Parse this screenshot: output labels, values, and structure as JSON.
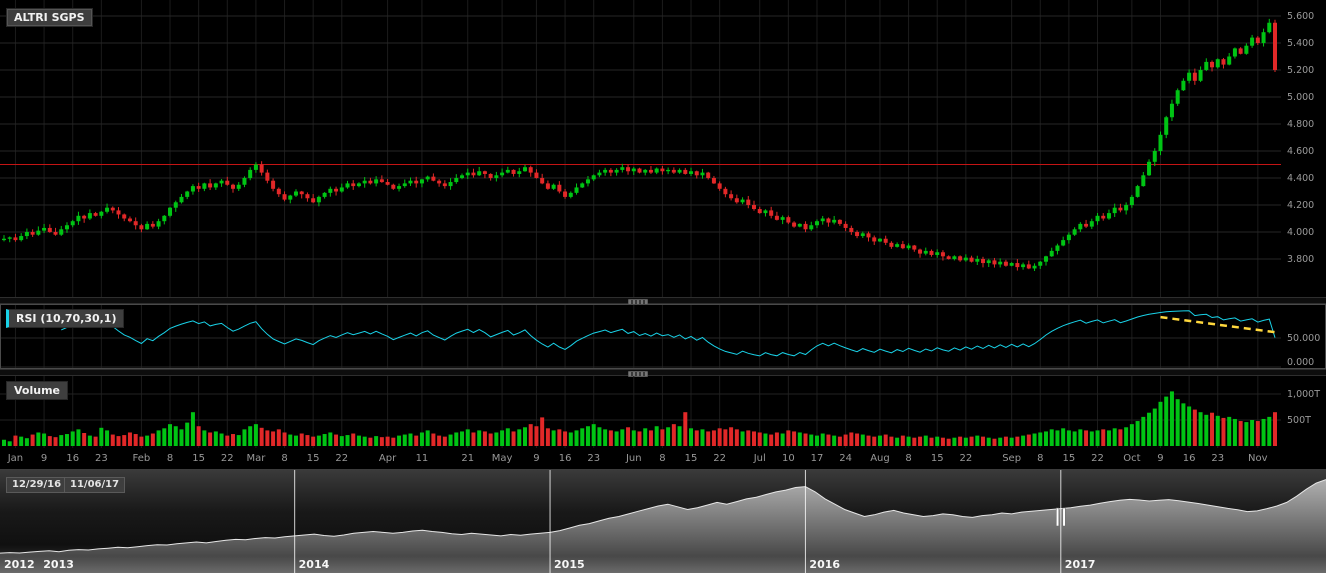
{
  "colors": {
    "up": "#00c414",
    "down": "#e22828",
    "rsi_line": "#19d2e8",
    "trendline": "#ffd83d",
    "resistance": "#c41414",
    "grid_v": "#1c1c1c",
    "grid_h": "#262626",
    "axis_text": "#9a9a9a",
    "nav_stroke": "#e6e6e6",
    "year_text": "#f7f7f7",
    "background": "#000000"
  },
  "chart_data": [
    {
      "id": "price-candles",
      "type": "candlestick",
      "symbol": "ALTRI SGPS",
      "first_open": 3.94,
      "resistance_line": 4.5,
      "y_axis": {
        "ticks": [
          5.6,
          5.4,
          5.2,
          5.0,
          4.8,
          4.6,
          4.4,
          4.2,
          4.0,
          3.8
        ],
        "decimals": 3
      },
      "x_ticks": [
        [
          "Jan",
          2
        ],
        [
          "9",
          7
        ],
        [
          "16",
          12
        ],
        [
          "23",
          17
        ],
        [
          "Feb",
          24
        ],
        [
          "8",
          29
        ],
        [
          "15",
          34
        ],
        [
          "22",
          39
        ],
        [
          "Mar",
          44
        ],
        [
          "8",
          49
        ],
        [
          "15",
          54
        ],
        [
          "22",
          59
        ],
        [
          "Apr",
          67
        ],
        [
          "11",
          73
        ],
        [
          "21",
          81
        ],
        [
          "May",
          87
        ],
        [
          "9",
          93
        ],
        [
          "16",
          98
        ],
        [
          "23",
          103
        ],
        [
          "Jun",
          110
        ],
        [
          "8",
          115
        ],
        [
          "15",
          120
        ],
        [
          "22",
          125
        ],
        [
          "Jul",
          132
        ],
        [
          "10",
          137
        ],
        [
          "17",
          142
        ],
        [
          "24",
          147
        ],
        [
          "Aug",
          153
        ],
        [
          "8",
          158
        ],
        [
          "15",
          163
        ],
        [
          "22",
          168
        ],
        [
          "Sep",
          176
        ],
        [
          "8",
          181
        ],
        [
          "15",
          186
        ],
        [
          "22",
          191
        ],
        [
          "Oct",
          197
        ],
        [
          "9",
          202
        ],
        [
          "16",
          207
        ],
        [
          "23",
          212
        ],
        [
          "Nov",
          219
        ]
      ],
      "closes": [
        3.95,
        3.96,
        3.94,
        3.97,
        4.0,
        3.98,
        4.01,
        4.03,
        4.0,
        3.98,
        4.02,
        4.05,
        4.08,
        4.12,
        4.1,
        4.14,
        4.12,
        4.15,
        4.18,
        4.16,
        4.13,
        4.1,
        4.08,
        4.05,
        4.02,
        4.06,
        4.04,
        4.08,
        4.12,
        4.18,
        4.22,
        4.26,
        4.3,
        4.34,
        4.32,
        4.36,
        4.33,
        4.36,
        4.38,
        4.35,
        4.32,
        4.35,
        4.4,
        4.46,
        4.5,
        4.44,
        4.38,
        4.32,
        4.28,
        4.24,
        4.27,
        4.3,
        4.28,
        4.25,
        4.22,
        4.26,
        4.29,
        4.32,
        4.3,
        4.33,
        4.36,
        4.34,
        4.36,
        4.38,
        4.36,
        4.39,
        4.37,
        4.35,
        4.32,
        4.34,
        4.36,
        4.38,
        4.36,
        4.39,
        4.41,
        4.38,
        4.36,
        4.34,
        4.37,
        4.4,
        4.42,
        4.44,
        4.42,
        4.45,
        4.43,
        4.4,
        4.42,
        4.44,
        4.46,
        4.43,
        4.45,
        4.48,
        4.44,
        4.4,
        4.36,
        4.32,
        4.35,
        4.3,
        4.26,
        4.29,
        4.33,
        4.36,
        4.39,
        4.42,
        4.44,
        4.46,
        4.44,
        4.46,
        4.48,
        4.45,
        4.47,
        4.44,
        4.46,
        4.44,
        4.47,
        4.45,
        4.46,
        4.44,
        4.46,
        4.43,
        4.45,
        4.42,
        4.44,
        4.4,
        4.36,
        4.32,
        4.28,
        4.25,
        4.22,
        4.24,
        4.2,
        4.17,
        4.14,
        4.16,
        4.12,
        4.09,
        4.11,
        4.07,
        4.04,
        4.06,
        4.02,
        4.05,
        4.08,
        4.1,
        4.07,
        4.09,
        4.06,
        4.03,
        4.0,
        3.97,
        3.99,
        3.96,
        3.93,
        3.95,
        3.92,
        3.89,
        3.91,
        3.88,
        3.9,
        3.87,
        3.84,
        3.86,
        3.83,
        3.85,
        3.82,
        3.8,
        3.82,
        3.79,
        3.81,
        3.78,
        3.8,
        3.77,
        3.79,
        3.76,
        3.78,
        3.75,
        3.77,
        3.74,
        3.76,
        3.73,
        3.75,
        3.78,
        3.82,
        3.86,
        3.9,
        3.94,
        3.98,
        4.02,
        4.06,
        4.04,
        4.08,
        4.12,
        4.1,
        4.14,
        4.18,
        4.16,
        4.2,
        4.26,
        4.34,
        4.42,
        4.52,
        4.6,
        4.72,
        4.85,
        4.95,
        5.05,
        5.12,
        5.18,
        5.12,
        5.2,
        5.26,
        5.22,
        5.28,
        5.24,
        5.3,
        5.36,
        5.32,
        5.38,
        5.44,
        5.4,
        5.48,
        5.55,
        5.2
      ]
    },
    {
      "id": "rsi",
      "type": "line",
      "label": "RSI (10,70,30,1)",
      "period": 10,
      "overbought": 70,
      "oversold": 30,
      "axis_ticks": [
        50,
        0
      ],
      "decimals": 3,
      "trendline": {
        "from_i": 202,
        "from_v": 86,
        "to_i": 222,
        "to_v": 60
      }
    },
    {
      "id": "volume",
      "type": "bar",
      "label": "Volume",
      "unit": "T",
      "axis_ticks": [
        1000,
        500
      ],
      "values": [
        120,
        90,
        200,
        180,
        150,
        220,
        260,
        240,
        190,
        170,
        210,
        230,
        280,
        320,
        250,
        200,
        180,
        350,
        300,
        220,
        190,
        210,
        260,
        230,
        180,
        200,
        240,
        300,
        340,
        420,
        380,
        320,
        450,
        650,
        380,
        300,
        260,
        280,
        240,
        200,
        230,
        210,
        320,
        380,
        420,
        350,
        300,
        280,
        320,
        260,
        220,
        200,
        240,
        210,
        180,
        200,
        230,
        260,
        220,
        190,
        210,
        240,
        200,
        180,
        160,
        190,
        170,
        180,
        160,
        200,
        220,
        240,
        200,
        260,
        300,
        240,
        200,
        180,
        220,
        260,
        280,
        320,
        260,
        300,
        280,
        240,
        260,
        300,
        340,
        280,
        320,
        360,
        420,
        380,
        550,
        340,
        300,
        320,
        280,
        260,
        300,
        340,
        380,
        420,
        360,
        320,
        300,
        280,
        320,
        360,
        300,
        280,
        340,
        300,
        380,
        320,
        360,
        420,
        380,
        650,
        340,
        300,
        320,
        280,
        300,
        340,
        320,
        360,
        320,
        280,
        300,
        280,
        260,
        240,
        220,
        260,
        240,
        300,
        280,
        260,
        240,
        220,
        200,
        240,
        220,
        200,
        180,
        220,
        260,
        240,
        220,
        200,
        180,
        200,
        220,
        180,
        160,
        200,
        180,
        160,
        180,
        200,
        160,
        180,
        160,
        140,
        160,
        180,
        160,
        180,
        200,
        180,
        160,
        140,
        160,
        180,
        160,
        180,
        200,
        220,
        240,
        260,
        280,
        320,
        300,
        340,
        300,
        280,
        320,
        300,
        280,
        300,
        320,
        300,
        340,
        320,
        360,
        420,
        480,
        560,
        640,
        720,
        850,
        950,
        1050,
        900,
        820,
        760,
        700,
        650,
        600,
        640,
        580,
        540,
        560,
        520,
        480,
        460,
        500,
        480,
        520,
        560,
        650
      ]
    },
    {
      "id": "navigator",
      "type": "area",
      "range_start": "12/29/16",
      "range_end": "11/06/17",
      "years": [
        [
          "2012",
          0
        ],
        [
          "2013",
          4
        ],
        [
          "2014",
          30
        ],
        [
          "2015",
          56
        ],
        [
          "2016",
          82
        ],
        [
          "2017",
          108
        ]
      ],
      "divider_indices": [
        30,
        56,
        82,
        108
      ],
      "handle_index": 108,
      "values": [
        1.42,
        1.45,
        1.43,
        1.48,
        1.52,
        1.55,
        1.5,
        1.58,
        1.62,
        1.6,
        1.66,
        1.7,
        1.75,
        1.72,
        1.78,
        1.85,
        1.9,
        1.88,
        1.95,
        2.0,
        2.05,
        2.0,
        2.08,
        2.15,
        2.2,
        2.18,
        2.25,
        2.3,
        2.28,
        2.35,
        2.4,
        2.45,
        2.5,
        2.42,
        2.38,
        2.45,
        2.55,
        2.6,
        2.65,
        2.6,
        2.55,
        2.6,
        2.68,
        2.72,
        2.65,
        2.6,
        2.52,
        2.48,
        2.55,
        2.5,
        2.45,
        2.4,
        2.48,
        2.44,
        2.5,
        2.55,
        2.6,
        2.7,
        2.85,
        3.0,
        3.1,
        3.25,
        3.4,
        3.5,
        3.65,
        3.8,
        3.95,
        4.1,
        4.2,
        4.05,
        3.9,
        4.0,
        4.15,
        4.3,
        4.2,
        4.35,
        4.5,
        4.6,
        4.75,
        4.9,
        5.0,
        5.15,
        5.2,
        4.9,
        4.5,
        4.2,
        3.9,
        3.7,
        3.5,
        3.6,
        3.75,
        3.85,
        3.7,
        3.6,
        3.5,
        3.55,
        3.65,
        3.6,
        3.5,
        3.45,
        3.55,
        3.6,
        3.7,
        3.65,
        3.75,
        3.8,
        3.85,
        3.9,
        3.95,
        4.0,
        4.08,
        4.15,
        4.25,
        4.35,
        4.42,
        4.47,
        4.44,
        4.38,
        4.42,
        4.46,
        4.4,
        4.32,
        4.24,
        4.15,
        4.06,
        3.96,
        3.88,
        3.78,
        3.82,
        3.95,
        4.1,
        4.3,
        4.65,
        5.05,
        5.4,
        5.6
      ]
    }
  ]
}
